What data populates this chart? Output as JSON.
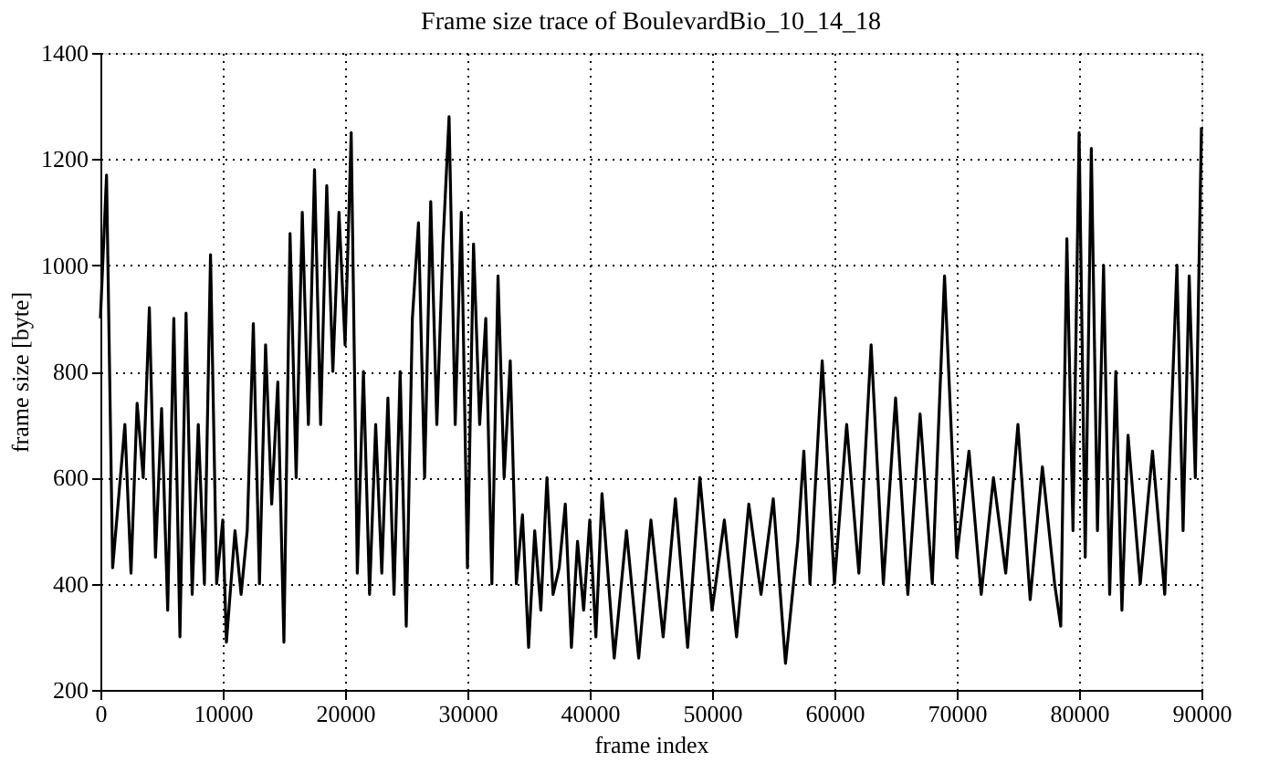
{
  "chart_data": {
    "type": "line",
    "title": "Frame size trace of BoulevardBio_10_14_18",
    "xlabel": "frame index",
    "ylabel": "frame size [byte]",
    "x": [
      0,
      500,
      1000,
      2000,
      2500,
      3000,
      3500,
      4000,
      4500,
      5000,
      5500,
      6000,
      6500,
      7000,
      7500,
      8000,
      8500,
      9000,
      9500,
      10000,
      10300,
      11000,
      11500,
      12000,
      12500,
      13000,
      13500,
      14000,
      14500,
      15000,
      15500,
      16000,
      16500,
      17000,
      17500,
      18000,
      18500,
      19000,
      19500,
      20000,
      20500,
      21000,
      21500,
      22000,
      22500,
      23000,
      23500,
      24000,
      24500,
      25000,
      25500,
      26000,
      26500,
      27000,
      27500,
      28000,
      28500,
      29000,
      29500,
      30000,
      30500,
      31000,
      31500,
      32000,
      32500,
      33000,
      33500,
      34000,
      34500,
      35000,
      35500,
      36000,
      36500,
      37000,
      37500,
      38000,
      38500,
      39000,
      39500,
      40000,
      40500,
      41000,
      42000,
      43000,
      44000,
      45000,
      46000,
      47000,
      48000,
      49000,
      50000,
      51000,
      52000,
      53000,
      54000,
      55000,
      56000,
      57000,
      57500,
      58000,
      59000,
      60000,
      61000,
      62000,
      63000,
      64000,
      65000,
      66000,
      67000,
      68000,
      69000,
      70000,
      71000,
      72000,
      73000,
      74000,
      75000,
      76000,
      77000,
      78000,
      78500,
      79000,
      79500,
      80000,
      80500,
      81000,
      81500,
      82000,
      82500,
      83000,
      83500,
      84000,
      85000,
      86000,
      87000,
      88000,
      88500,
      89000,
      89500,
      90000
    ],
    "series": [
      {
        "color": "#000000",
        "values": [
          900,
          1170,
          430,
          700,
          420,
          740,
          600,
          920,
          450,
          730,
          350,
          900,
          300,
          910,
          380,
          700,
          400,
          1020,
          400,
          520,
          290,
          500,
          380,
          500,
          890,
          400,
          850,
          550,
          780,
          290,
          1060,
          600,
          1100,
          700,
          1180,
          700,
          1150,
          800,
          1100,
          850,
          1250,
          420,
          800,
          380,
          700,
          420,
          750,
          380,
          800,
          320,
          900,
          1080,
          600,
          1120,
          700,
          1040,
          1280,
          700,
          1100,
          430,
          1040,
          700,
          900,
          400,
          980,
          600,
          820,
          400,
          530,
          280,
          500,
          350,
          600,
          380,
          430,
          550,
          280,
          480,
          350,
          520,
          300,
          570,
          260,
          500,
          260,
          520,
          300,
          560,
          280,
          600,
          350,
          520,
          300,
          550,
          380,
          560,
          250,
          480,
          650,
          400,
          820,
          400,
          700,
          420,
          850,
          400,
          750,
          380,
          720,
          400,
          980,
          450,
          650,
          380,
          600,
          420,
          700,
          370,
          620,
          400,
          320,
          1050,
          500,
          1250,
          450,
          1220,
          500,
          1000,
          380,
          800,
          350,
          680,
          400,
          650,
          380,
          1000,
          500,
          980,
          600,
          1260
        ]
      }
    ],
    "xlim": [
      0,
      90000
    ],
    "xticks": [
      0,
      10000,
      20000,
      30000,
      40000,
      50000,
      60000,
      70000,
      80000,
      90000
    ],
    "ylim": [
      200,
      1400
    ],
    "yticks": [
      200,
      400,
      600,
      800,
      1000,
      1200,
      1400
    ],
    "grid": true,
    "marker": "none",
    "line_style": "solid"
  }
}
